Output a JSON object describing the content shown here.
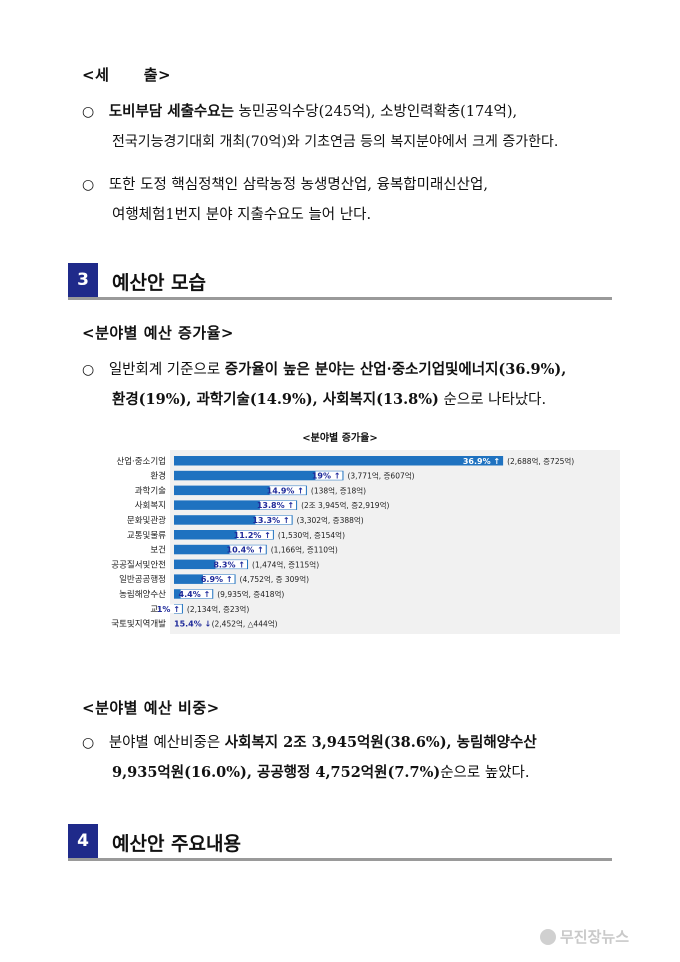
{
  "sec_tax": {
    "heading": "<세      출>",
    "p1": {
      "bullet": "○",
      "a": "도비부담 세출수요는",
      "b": " 농민공익수당(245억), 소방인력확충(174억),",
      "line2": "전국기능경기대회 개최(70억)와 기초연금 등의 복지분야에서 크게 증가한다."
    },
    "p2": {
      "bullet": "○",
      "line1": "또한 도정 핵심정책인 삼락농정 농생명산업, 융복합미래신산업,",
      "line2": "여행체험1번지 분야 지출수요도 늘어 난다."
    }
  },
  "section3": {
    "number": "3",
    "title": "예산안 모습"
  },
  "increase": {
    "heading": "<분야별 예산 증가율>",
    "bullet": "○",
    "l1a": "일반회계 기준으로 ",
    "l1b": "증가율이 높은 분야는 산업·중소기업및에너지(36.9%),",
    "l2a": "환경(19%), 과학기술(14.9%), 사회복지(13.8%)",
    "l2b": " 순으로 나타났다."
  },
  "chart_data": {
    "type": "bar",
    "orientation": "horizontal",
    "title": "<분야별 증가율>",
    "bar_color": "#1f72c0",
    "up_color": "#1f2a9a",
    "xlim": [
      0,
      37
    ],
    "categories": [
      "산업·중소기업",
      "환경",
      "과학기술",
      "사회복지",
      "문화및관광",
      "교통및물류",
      "보건",
      "공공질서및안전",
      "일반공공행정",
      "농림해양수산",
      "교육",
      "국토및지역개발"
    ],
    "values": [
      36.9,
      19,
      14.9,
      13.8,
      13.3,
      11.2,
      10.4,
      8.3,
      6.9,
      4.4,
      1,
      -15.4
    ],
    "value_labels": [
      "36.9% ↑",
      "19% ↑",
      "14.9% ↑",
      "13.8% ↑",
      "13.3% ↑",
      "11.2% ↑",
      "10.4% ↑",
      "8.3% ↑",
      "6.9% ↑",
      "4.4% ↑",
      "1% ↑",
      "15.4% ↓"
    ],
    "notes": [
      "(2,688억, 증725억)",
      "(3,771억, 증607억)",
      "(138억, 증18억)",
      "(2조 3,945억, 증2,919억)",
      "(3,302억, 증388억)",
      "(1,530억, 증154억)",
      "(1,166억, 증110억)",
      "(1,474억, 증115억)",
      "(4,752억, 증 309억)",
      "(9,935억, 증418억)",
      "(2,134억, 증23억)",
      "(2,452억, △444억)"
    ]
  },
  "share": {
    "heading": "<분야별 예산 비중>",
    "bullet": "○",
    "l1a": "분야별 예산비중은 ",
    "l1b": "사회복지 2조 3,945억원(38.6%), 농림해양수산",
    "l2a": "9,935억원(16.0%), 공공행정 4,752억원(7.7%)",
    "l2b": "순으로 높았다."
  },
  "section4": {
    "number": "4",
    "title": "예산안 주요내용"
  },
  "watermark": "무진장뉴스"
}
